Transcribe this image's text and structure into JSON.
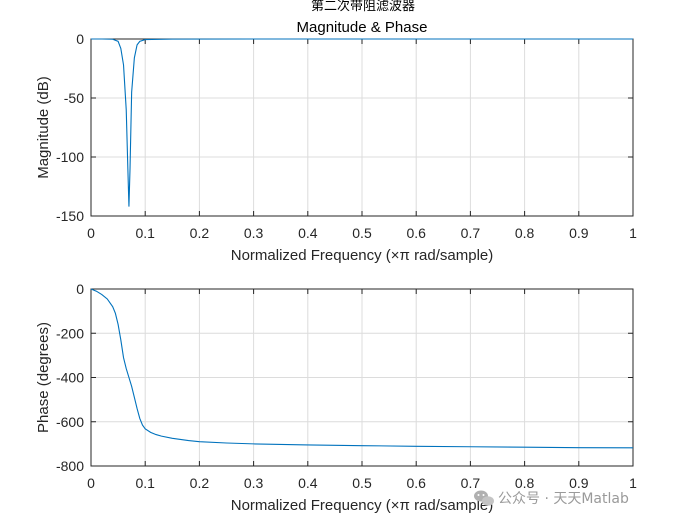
{
  "figure_title": "第二次带阻滤波器",
  "watermark": {
    "text": "公众号 · 天天Matlab",
    "icon": "wechat-icon",
    "color": "#9a9a9a"
  },
  "chart_data": [
    {
      "type": "line",
      "title": "Magnitude & Phase",
      "xlabel": "Normalized Frequency  (×π rad/sample)",
      "ylabel": "Magnitude (dB)",
      "xlim": [
        0,
        1
      ],
      "ylim": [
        -150,
        0
      ],
      "xticks": [
        0,
        0.1,
        0.2,
        0.3,
        0.4,
        0.5,
        0.6,
        0.7,
        0.8,
        0.9,
        1
      ],
      "xtick_labels": [
        "0",
        "0.1",
        "0.2",
        "0.3",
        "0.4",
        "0.5",
        "0.6",
        "0.7",
        "0.8",
        "0.9",
        "1"
      ],
      "yticks": [
        0,
        -50,
        -100,
        -150
      ],
      "ytick_labels": [
        "0",
        "-50",
        "-100",
        "-150"
      ],
      "grid": true,
      "color": "#0072bd",
      "series": [
        {
          "x": [
            0,
            0.02,
            0.04,
            0.05,
            0.055,
            0.06,
            0.065,
            0.068,
            0.07,
            0.072,
            0.075,
            0.08,
            0.085,
            0.09,
            0.1,
            0.15,
            0.3,
            0.5,
            0.7,
            1.0
          ],
          "values": [
            0,
            0,
            -0.2,
            -2,
            -8,
            -22,
            -60,
            -110,
            -142,
            -110,
            -45,
            -16,
            -5,
            -2,
            -0.5,
            -0.1,
            0,
            0,
            0,
            0
          ]
        }
      ]
    },
    {
      "type": "line",
      "title": "",
      "xlabel": "Normalized Frequency  (×π rad/sample)",
      "ylabel": "Phase (degrees)",
      "xlim": [
        0,
        1
      ],
      "ylim": [
        -800,
        0
      ],
      "xticks": [
        0,
        0.1,
        0.2,
        0.3,
        0.4,
        0.5,
        0.6,
        0.7,
        0.8,
        0.9,
        1
      ],
      "xtick_labels": [
        "0",
        "0.1",
        "0.2",
        "0.3",
        "0.4",
        "0.5",
        "0.6",
        "0.7",
        "0.8",
        "0.9",
        "1"
      ],
      "yticks": [
        0,
        -200,
        -400,
        -600,
        -800
      ],
      "ytick_labels": [
        "0",
        "-200",
        "-400",
        "-600",
        "-800"
      ],
      "grid": true,
      "color": "#0072bd",
      "series": [
        {
          "x": [
            0,
            0.01,
            0.02,
            0.03,
            0.04,
            0.045,
            0.05,
            0.055,
            0.06,
            0.065,
            0.07,
            0.075,
            0.08,
            0.085,
            0.09,
            0.095,
            0.1,
            0.11,
            0.12,
            0.13,
            0.15,
            0.18,
            0.2,
            0.25,
            0.3,
            0.4,
            0.5,
            0.6,
            0.7,
            0.8,
            0.9,
            1.0
          ],
          "values": [
            0,
            -10,
            -25,
            -45,
            -80,
            -110,
            -160,
            -230,
            -310,
            -360,
            -400,
            -440,
            -490,
            -540,
            -585,
            -615,
            -632,
            -648,
            -658,
            -665,
            -675,
            -685,
            -690,
            -696,
            -700,
            -705,
            -708,
            -711,
            -713,
            -715,
            -717,
            -718
          ]
        }
      ]
    }
  ]
}
